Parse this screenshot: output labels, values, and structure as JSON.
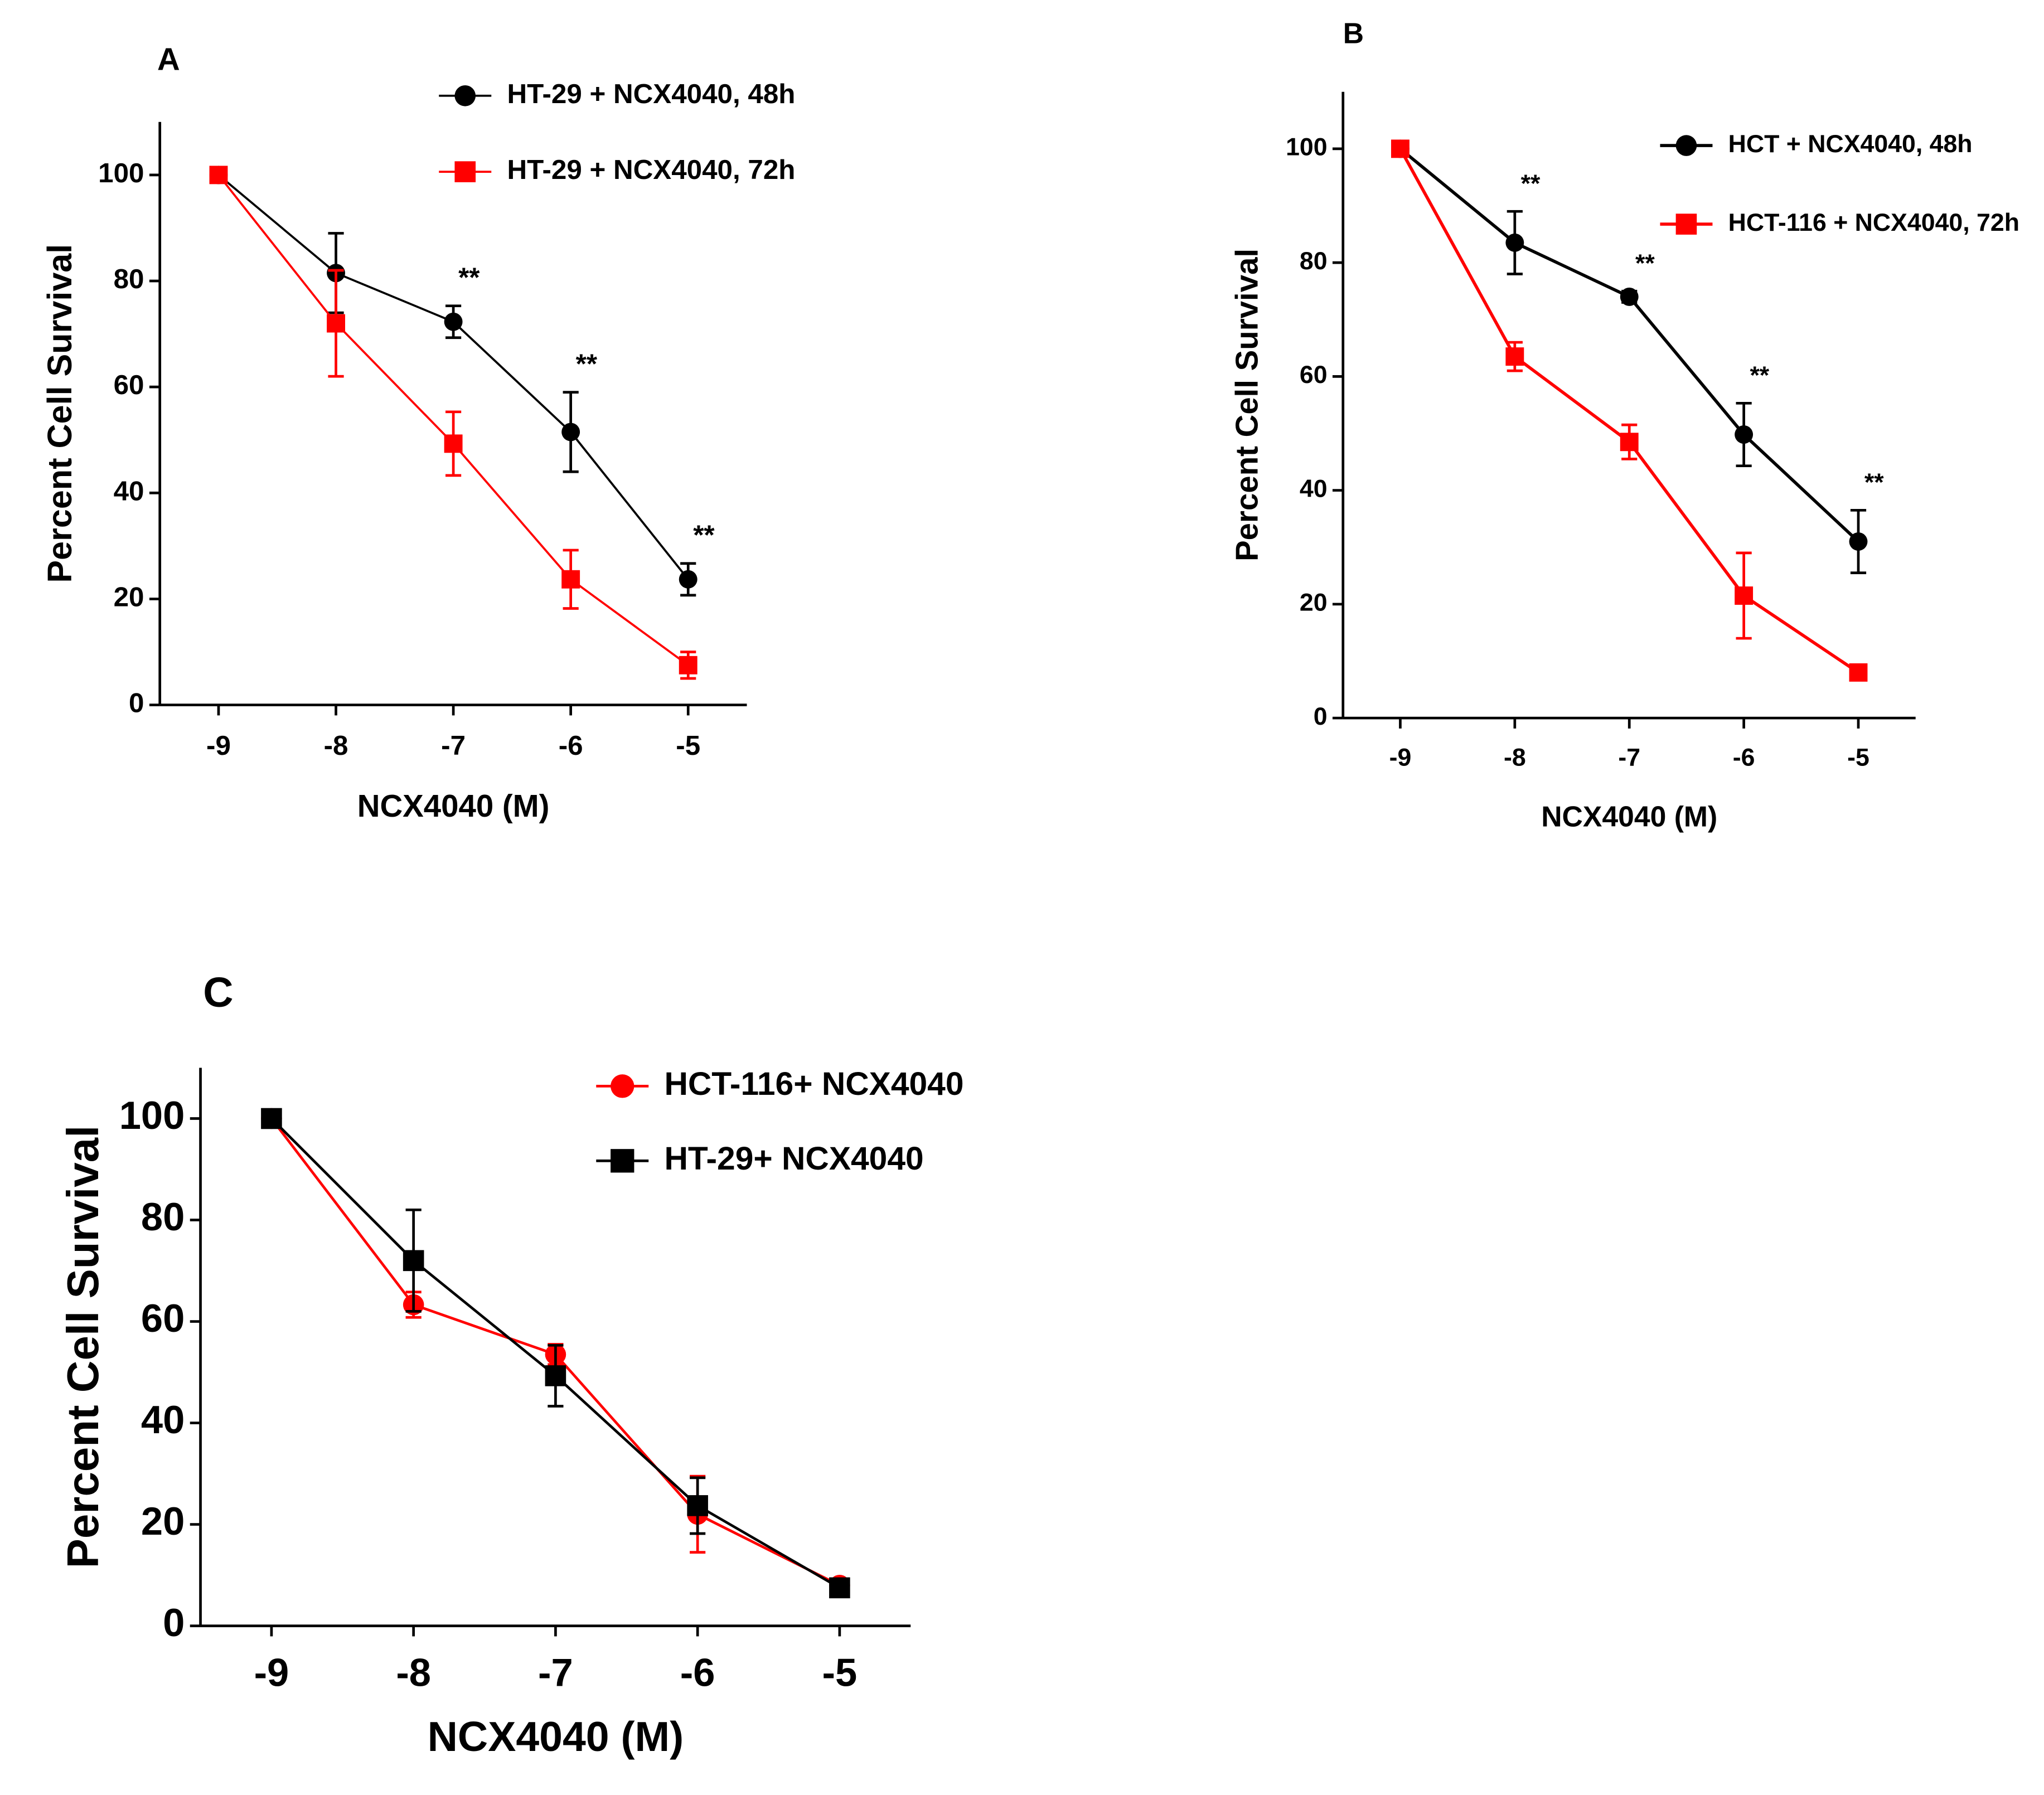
{
  "chart_data": [
    {
      "type": "line",
      "panel": "A",
      "x_label": "NCX4040 (M)",
      "y_label": "Percent Cell Survival",
      "x": [
        -9,
        -8,
        -7,
        -6,
        -5
      ],
      "xlim": [
        -9.5,
        -4.5
      ],
      "xticks": [
        -9,
        -8,
        -7,
        -6,
        -5
      ],
      "ylim": [
        0,
        110
      ],
      "yticks": [
        0,
        20,
        40,
        60,
        80,
        100
      ],
      "series": [
        {
          "name": "HT-29 + NCX4040, 48h",
          "color": "#000000",
          "marker": "circle",
          "values": [
            100,
            81.5,
            72.3,
            51.5,
            23.7
          ],
          "errors": [
            0,
            7.5,
            3,
            7.5,
            3
          ]
        },
        {
          "name": "HT-29 + NCX4040, 72h",
          "color": "#ff0000",
          "marker": "square",
          "values": [
            100,
            72,
            49.3,
            23.7,
            7.5
          ],
          "errors": [
            0,
            10,
            6,
            5.5,
            2.5
          ]
        }
      ],
      "annotations": [
        {
          "text": "**",
          "x": -7
        },
        {
          "text": "**",
          "x": -6
        },
        {
          "text": "**",
          "x": -5
        }
      ]
    },
    {
      "type": "line",
      "panel": "B",
      "x_label": "NCX4040 (M)",
      "y_label": "Percent Cell Survival",
      "x": [
        -9,
        -8,
        -7,
        -6,
        -5
      ],
      "xlim": [
        -9.5,
        -4.5
      ],
      "xticks": [
        -9,
        -8,
        -7,
        -6,
        -5
      ],
      "ylim": [
        0,
        110
      ],
      "yticks": [
        0,
        20,
        40,
        60,
        80,
        100
      ],
      "series": [
        {
          "name": "HCT + NCX4040, 48h",
          "color": "#000000",
          "marker": "circle",
          "values": [
            100,
            83.5,
            74,
            49.8,
            31
          ],
          "errors": [
            0,
            5.5,
            1,
            5.5,
            5.5
          ]
        },
        {
          "name": "HCT-116 + NCX4040, 72h",
          "color": "#ff0000",
          "marker": "square",
          "values": [
            100,
            63.5,
            48.5,
            21.5,
            8
          ],
          "errors": [
            0,
            2.5,
            3,
            7.5,
            1
          ]
        }
      ],
      "annotations": [
        {
          "text": "**",
          "x": -8
        },
        {
          "text": "**",
          "x": -7
        },
        {
          "text": "**",
          "x": -6
        },
        {
          "text": "**",
          "x": -5
        }
      ]
    },
    {
      "type": "line",
      "panel": "C",
      "x_label": "NCX4040 (M)",
      "y_label": "Percent Cell Survival",
      "x": [
        -9,
        -8,
        -7,
        -6,
        -5
      ],
      "xlim": [
        -9.5,
        -4.5
      ],
      "xticks": [
        -9,
        -8,
        -7,
        -6,
        -5
      ],
      "ylim": [
        0,
        110
      ],
      "yticks": [
        0,
        20,
        40,
        60,
        80,
        100
      ],
      "series": [
        {
          "name": "HCT-116+ NCX4040",
          "color": "#ff0000",
          "marker": "circle",
          "values": [
            100,
            63.3,
            53.5,
            22,
            8
          ],
          "errors": [
            0,
            2.5,
            2,
            7.5,
            1
          ]
        },
        {
          "name": "HT-29+ NCX4040",
          "color": "#000000",
          "marker": "square",
          "values": [
            100,
            72,
            49.3,
            23.7,
            7.5
          ],
          "errors": [
            0,
            10,
            6,
            5.5,
            1
          ]
        }
      ],
      "annotations": []
    }
  ]
}
